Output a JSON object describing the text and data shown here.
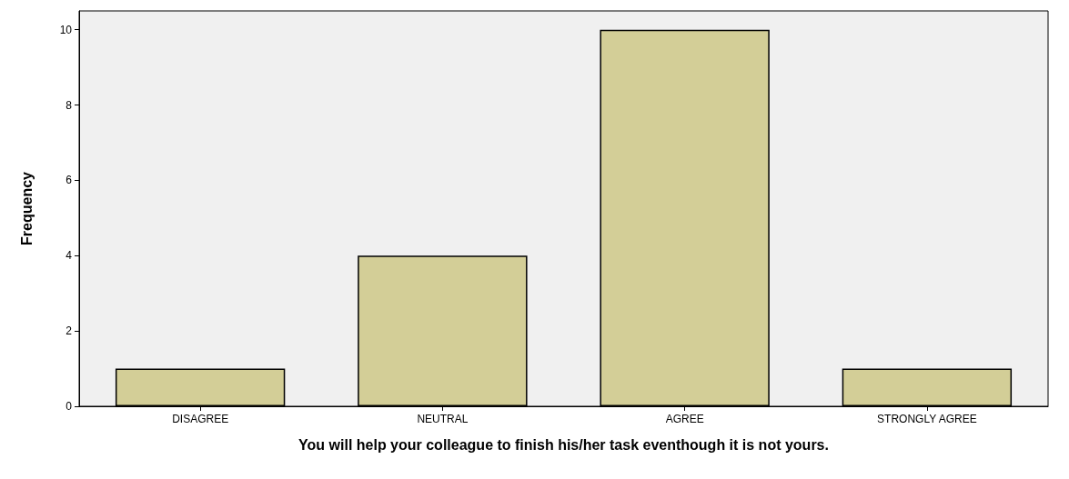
{
  "chart_data": {
    "type": "bar",
    "xlabel": "You will help your colleague to finish his/her task eventhough it is not yours.",
    "ylabel": "Frequency",
    "categories": [
      "DISAGREE",
      "NEUTRAL",
      "AGREE",
      "STRONGLY AGREE"
    ],
    "values": [
      1,
      4,
      10,
      1
    ],
    "color": "#d3ce97",
    "ylim": [
      0,
      10.5
    ],
    "yticks": [
      0,
      2,
      4,
      6,
      8,
      10
    ],
    "grid": false
  }
}
